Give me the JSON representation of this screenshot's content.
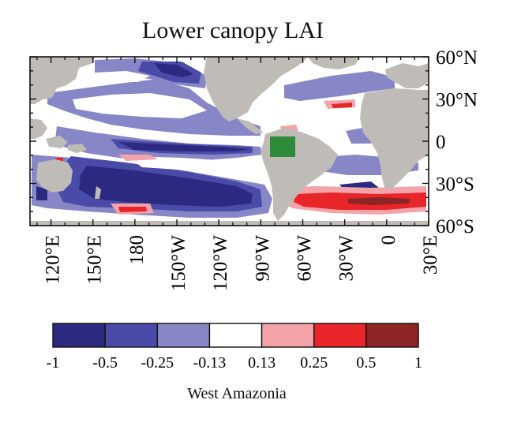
{
  "title": "Lower canopy LAI",
  "caption": "West Amazonia",
  "lon_labels": [
    "120°E",
    "150°E",
    "180",
    "150°W",
    "120°W",
    "90°W",
    "60°W",
    "30°W",
    "0",
    "30°E"
  ],
  "lat_labels": [
    "60°N",
    "30°N",
    "0",
    "30°S",
    "60°S"
  ],
  "colorbar": {
    "boundaries": [
      "-1",
      "-0.5",
      "-0.25",
      "-0.13",
      "0.13",
      "0.25",
      "0.5",
      "1"
    ],
    "colors": [
      "#2b2a80",
      "#4a4ba8",
      "#8787c8",
      "#ffffff",
      "#f4a3aa",
      "#e8262a",
      "#8e2424"
    ]
  },
  "colors": {
    "land": "#bfbbb6",
    "region_box": "#2e8b3a",
    "frame": "#111111"
  }
}
